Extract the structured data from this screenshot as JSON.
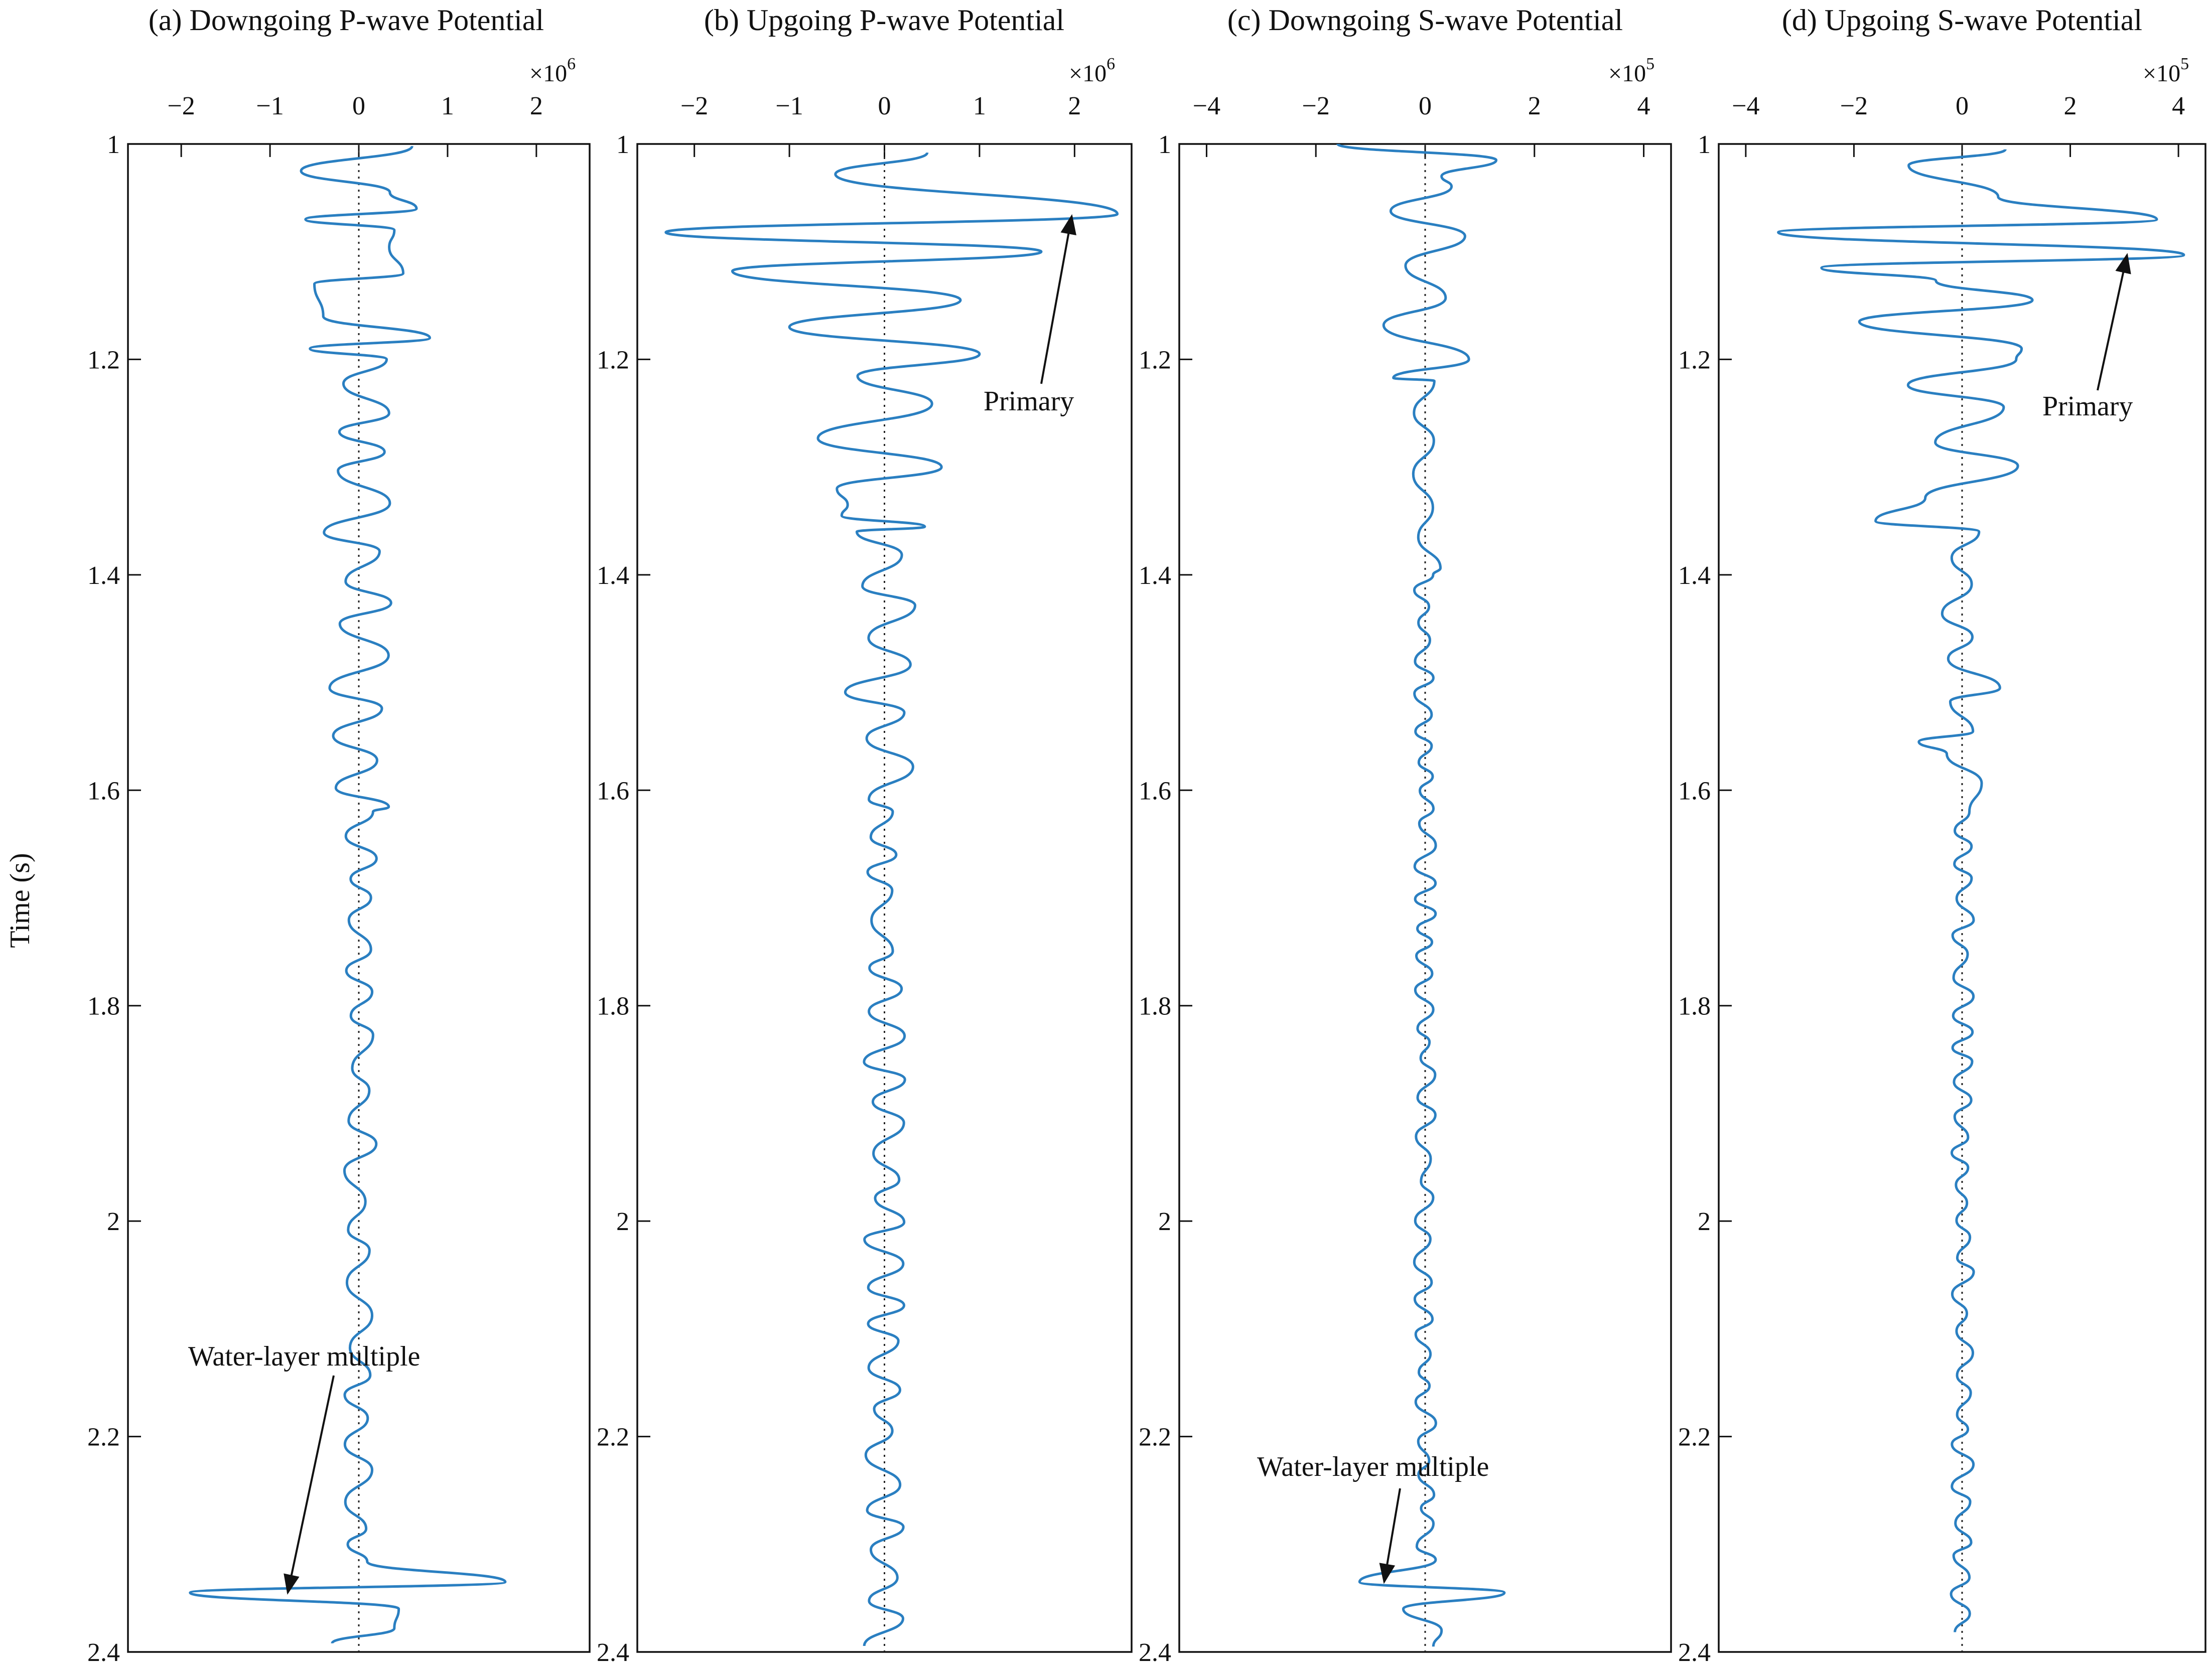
{
  "chart_data": [
    {
      "type": "line",
      "id": "a",
      "title": "(a) Downgoing P-wave Potential",
      "multiplier": {
        "prefix": "×10",
        "exp": "6"
      },
      "xlim": [
        -2.6,
        2.6
      ],
      "xticks": [
        -2,
        -1,
        0,
        1,
        2
      ],
      "xtick_labels": [
        "−2",
        "−1",
        "0",
        "1",
        "2"
      ],
      "trace": {
        "segments": [
          {
            "t": [
              1.0,
              1.2
            ],
            "amp": 0.7,
            "period": 0.027
          },
          {
            "t": [
              1.2,
              1.62
            ],
            "amp": 0.4,
            "period": 0.024
          },
          {
            "t": [
              1.62,
              2.3
            ],
            "amp": 0.2,
            "period": 0.024
          },
          {
            "t": [
              2.3,
              2.4
            ],
            "amp": 0.15,
            "period": 0.02
          }
        ],
        "peaks": [
          {
            "t": 1.002,
            "v": 0.6
          },
          {
            "t": 1.025,
            "v": -0.65
          },
          {
            "t": 1.045,
            "v": 0.35
          },
          {
            "t": 1.06,
            "v": 0.65
          },
          {
            "t": 1.07,
            "v": -0.6
          },
          {
            "t": 1.08,
            "v": 0.4
          },
          {
            "t": 1.12,
            "v": 0.5
          },
          {
            "t": 1.13,
            "v": -0.5
          },
          {
            "t": 1.16,
            "v": -0.4
          },
          {
            "t": 1.18,
            "v": 0.8
          },
          {
            "t": 1.19,
            "v": -0.55
          },
          {
            "t": 2.335,
            "v": 1.65
          },
          {
            "t": 2.345,
            "v": -1.9
          },
          {
            "t": 2.36,
            "v": 0.45
          },
          {
            "t": 2.378,
            "v": 0.4
          },
          {
            "t": 2.392,
            "v": -0.3
          }
        ],
        "seed": 11
      }
    },
    {
      "type": "line",
      "id": "b",
      "title": "(b) Upgoing P-wave Potential",
      "multiplier": {
        "prefix": "×10",
        "exp": "6"
      },
      "xlim": [
        -2.6,
        2.6
      ],
      "xticks": [
        -2,
        -1,
        0,
        1,
        2
      ],
      "xtick_labels": [
        "−2",
        "−1",
        "0",
        "1",
        "2"
      ],
      "trace": {
        "segments": [
          {
            "t": [
              1.0,
              1.36
            ],
            "amp": 0.75,
            "period": 0.027
          },
          {
            "t": [
              1.36,
              1.62
            ],
            "amp": 0.42,
            "period": 0.024
          },
          {
            "t": [
              1.62,
              2.4
            ],
            "amp": 0.22,
            "period": 0.022
          }
        ],
        "peaks": [
          {
            "t": 1.008,
            "v": 0.45
          },
          {
            "t": 1.065,
            "v": 2.45
          },
          {
            "t": 1.082,
            "v": -2.3
          },
          {
            "t": 1.1,
            "v": 1.65
          },
          {
            "t": 1.118,
            "v": -1.6
          },
          {
            "t": 1.145,
            "v": 0.8
          },
          {
            "t": 1.17,
            "v": -1.0
          },
          {
            "t": 1.195,
            "v": 1.0
          },
          {
            "t": 1.3,
            "v": 0.6
          },
          {
            "t": 1.32,
            "v": -0.5
          },
          {
            "t": 1.345,
            "v": -0.45
          }
        ],
        "seed": 23
      }
    },
    {
      "type": "line",
      "id": "c",
      "title": "(c) Downgoing S-wave Potential",
      "multiplier": {
        "prefix": "×10",
        "exp": "5"
      },
      "xlim": [
        -4.5,
        4.5
      ],
      "xticks": [
        -4,
        -2,
        0,
        2,
        4
      ],
      "xtick_labels": [
        "−4",
        "−2",
        "0",
        "2",
        "4"
      ],
      "trace": {
        "segments": [
          {
            "t": [
              1.0,
              1.22
            ],
            "amp": 0.9,
            "period": 0.026
          },
          {
            "t": [
              1.22,
              1.4
            ],
            "amp": 0.35,
            "period": 0.024
          },
          {
            "t": [
              1.4,
              2.4
            ],
            "amp": 0.2,
            "period": 0.017
          }
        ],
        "peaks": [
          {
            "t": 1.0,
            "v": -1.6
          },
          {
            "t": 1.015,
            "v": 1.3
          },
          {
            "t": 1.03,
            "v": 0.3
          },
          {
            "t": 1.2,
            "v": 0.8
          },
          {
            "t": 2.335,
            "v": -1.2
          },
          {
            "t": 2.345,
            "v": 1.45
          },
          {
            "t": 2.36,
            "v": -0.4
          },
          {
            "t": 2.38,
            "v": 0.3
          },
          {
            "t": 2.395,
            "v": 0.15
          }
        ],
        "seed": 37
      }
    },
    {
      "type": "line",
      "id": "d",
      "title": "(d) Upgoing S-wave Potential",
      "multiplier": {
        "prefix": "×10",
        "exp": "5"
      },
      "xlim": [
        -4.5,
        4.5
      ],
      "xticks": [
        -4,
        -2,
        0,
        2,
        4
      ],
      "xtick_labels": [
        "−4",
        "−2",
        "0",
        "2",
        "4"
      ],
      "trace": {
        "segments": [
          {
            "t": [
              1.0,
              1.36
            ],
            "amp": 1.3,
            "period": 0.026
          },
          {
            "t": [
              1.36,
              1.62
            ],
            "amp": 0.5,
            "period": 0.024
          },
          {
            "t": [
              1.62,
              2.4
            ],
            "amp": 0.22,
            "period": 0.017
          }
        ],
        "peaks": [
          {
            "t": 1.005,
            "v": 0.8
          },
          {
            "t": 1.07,
            "v": 3.6
          },
          {
            "t": 1.082,
            "v": -3.4
          },
          {
            "t": 1.103,
            "v": 4.1
          },
          {
            "t": 1.115,
            "v": -2.6
          },
          {
            "t": 1.145,
            "v": 1.3
          },
          {
            "t": 1.165,
            "v": -1.9
          },
          {
            "t": 1.19,
            "v": 1.1
          },
          {
            "t": 1.2,
            "v": 1.0
          },
          {
            "t": 1.35,
            "v": -1.6
          },
          {
            "t": 1.505,
            "v": 0.7
          },
          {
            "t": 1.555,
            "v": -0.8
          }
        ],
        "seed": 53
      }
    }
  ],
  "y_axis": {
    "label": "Time (s)",
    "ylim": [
      1.0,
      2.4
    ],
    "ticks": [
      1.0,
      1.2,
      1.4,
      1.6,
      1.8,
      2.0,
      2.2,
      2.4
    ],
    "tick_labels": [
      "1",
      "1.2",
      "1.4",
      "1.6",
      "1.8",
      "2",
      "2.2",
      "2.4"
    ],
    "direction": "downward"
  },
  "annotations": [
    {
      "panel": "a",
      "text": "Water-layer multiple",
      "arrow_to": {
        "x": -0.8,
        "t": 2.345
      }
    },
    {
      "panel": "b",
      "text": "Primary",
      "arrow_to": {
        "x": 1.97,
        "t": 1.067
      }
    },
    {
      "panel": "c",
      "text": "Water-layer multiple",
      "arrow_to": {
        "x": -0.75,
        "t": 2.335
      }
    },
    {
      "panel": "d",
      "text": "Primary",
      "arrow_to": {
        "x": 3.05,
        "t": 1.103
      }
    }
  ],
  "colors": {
    "trace": "#2a7fc1",
    "axis": "#111111",
    "zero_line": "#222222"
  }
}
